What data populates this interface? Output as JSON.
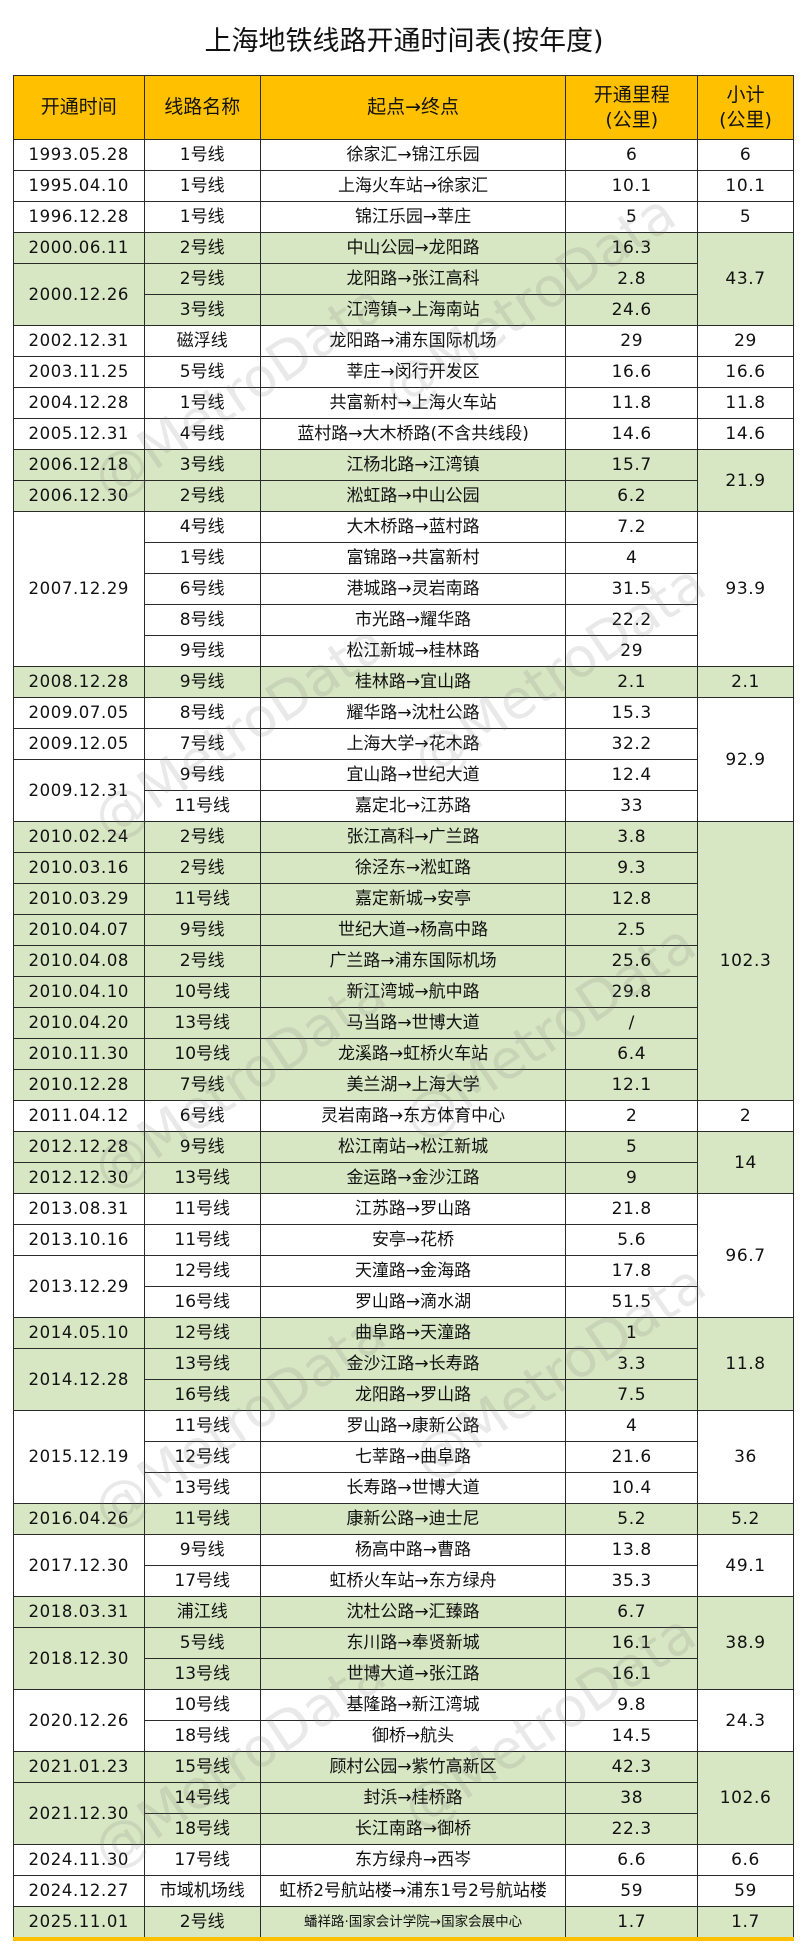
{
  "title": "上海地铁线路开通时间表(按年度)",
  "headers": {
    "date": "开通时间",
    "line": "线路名称",
    "route": "起点→终点",
    "mileage": "开通里程\n(公里)",
    "subtotal": "小计\n(公里)"
  },
  "watermark": "@MetroData",
  "colors": {
    "header": "#ffc000",
    "green_band": "#d7e6c3",
    "white_band": "#ffffff"
  },
  "rows": [
    {
      "date": "1993.05.28",
      "line": "1号线",
      "route": "徐家汇→锦江乐园",
      "km": "6",
      "sub": "6",
      "g": false
    },
    {
      "date": "1995.04.10",
      "line": "1号线",
      "route": "上海火车站→徐家汇",
      "km": "10.1",
      "sub": "10.1",
      "g": false
    },
    {
      "date": "1996.12.28",
      "line": "1号线",
      "route": "锦江乐园→莘庄",
      "km": "5",
      "sub": "5",
      "g": false
    },
    {
      "date": "2000.06.11",
      "line": "2号线",
      "route": "中山公园→龙阳路",
      "km": "16.3",
      "sub": "43.7",
      "subspan": 3,
      "g": true
    },
    {
      "date": "2000.12.26",
      "dspan": 2,
      "line": "2号线",
      "route": "龙阳路→张江高科",
      "km": "2.8",
      "g": true
    },
    {
      "line": "3号线",
      "route": "江湾镇→上海南站",
      "km": "24.6",
      "g": true
    },
    {
      "date": "2002.12.31",
      "line": "磁浮线",
      "route": "龙阳路→浦东国际机场",
      "km": "29",
      "sub": "29",
      "g": false
    },
    {
      "date": "2003.11.25",
      "line": "5号线",
      "route": "莘庄→闵行开发区",
      "km": "16.6",
      "sub": "16.6",
      "g": false
    },
    {
      "date": "2004.12.28",
      "line": "1号线",
      "route": "共富新村→上海火车站",
      "km": "11.8",
      "sub": "11.8",
      "g": false
    },
    {
      "date": "2005.12.31",
      "line": "4号线",
      "route": "蓝村路→大木桥路(不含共线段)",
      "km": "14.6",
      "sub": "14.6",
      "g": false
    },
    {
      "date": "2006.12.18",
      "line": "3号线",
      "route": "江杨北路→江湾镇",
      "km": "15.7",
      "sub": "21.9",
      "subspan": 2,
      "g": true
    },
    {
      "date": "2006.12.30",
      "line": "2号线",
      "route": "淞虹路→中山公园",
      "km": "6.2",
      "g": true
    },
    {
      "date": "2007.12.29",
      "dspan": 5,
      "line": "4号线",
      "route": "大木桥路→蓝村路",
      "km": "7.2",
      "sub": "93.9",
      "subspan": 5,
      "g": false
    },
    {
      "line": "1号线",
      "route": "富锦路→共富新村",
      "km": "4",
      "g": false
    },
    {
      "line": "6号线",
      "route": "港城路→灵岩南路",
      "km": "31.5",
      "g": false
    },
    {
      "line": "8号线",
      "route": "市光路→耀华路",
      "km": "22.2",
      "g": false
    },
    {
      "line": "9号线",
      "route": "松江新城→桂林路",
      "km": "29",
      "g": false
    },
    {
      "date": "2008.12.28",
      "line": "9号线",
      "route": "桂林路→宜山路",
      "km": "2.1",
      "sub": "2.1",
      "g": true
    },
    {
      "date": "2009.07.05",
      "line": "8号线",
      "route": "耀华路→沈杜公路",
      "km": "15.3",
      "sub": "92.9",
      "subspan": 4,
      "g": false
    },
    {
      "date": "2009.12.05",
      "line": "7号线",
      "route": "上海大学→花木路",
      "km": "32.2",
      "g": false
    },
    {
      "date": "2009.12.31",
      "dspan": 2,
      "line": "9号线",
      "route": "宜山路→世纪大道",
      "km": "12.4",
      "g": false
    },
    {
      "line": "11号线",
      "route": "嘉定北→江苏路",
      "km": "33",
      "g": false
    },
    {
      "date": "2010.02.24",
      "line": "2号线",
      "route": "张江高科→广兰路",
      "km": "3.8",
      "sub": "102.3",
      "subspan": 9,
      "g": true
    },
    {
      "date": "2010.03.16",
      "line": "2号线",
      "route": "徐泾东→淞虹路",
      "km": "9.3",
      "g": true
    },
    {
      "date": "2010.03.29",
      "line": "11号线",
      "route": "嘉定新城→安亭",
      "km": "12.8",
      "g": true
    },
    {
      "date": "2010.04.07",
      "line": "9号线",
      "route": "世纪大道→杨高中路",
      "km": "2.5",
      "g": true
    },
    {
      "date": "2010.04.08",
      "line": "2号线",
      "route": "广兰路→浦东国际机场",
      "km": "25.6",
      "g": true
    },
    {
      "date": "2010.04.10",
      "line": "10号线",
      "route": "新江湾城→航中路",
      "km": "29.8",
      "g": true
    },
    {
      "date": "2010.04.20",
      "line": "13号线",
      "route": "马当路→世博大道",
      "km": "/",
      "g": true
    },
    {
      "date": "2010.11.30",
      "line": "10号线",
      "route": "龙溪路→虹桥火车站",
      "km": "6.4",
      "g": true
    },
    {
      "date": "2010.12.28",
      "line": "7号线",
      "route": "美兰湖→上海大学",
      "km": "12.1",
      "g": true
    },
    {
      "date": "2011.04.12",
      "line": "6号线",
      "route": "灵岩南路→东方体育中心",
      "km": "2",
      "sub": "2",
      "g": false
    },
    {
      "date": "2012.12.28",
      "line": "9号线",
      "route": "松江南站→松江新城",
      "km": "5",
      "sub": "14",
      "subspan": 2,
      "g": true
    },
    {
      "date": "2012.12.30",
      "line": "13号线",
      "route": "金运路→金沙江路",
      "km": "9",
      "g": true
    },
    {
      "date": "2013.08.31",
      "line": "11号线",
      "route": "江苏路→罗山路",
      "km": "21.8",
      "sub": "96.7",
      "subspan": 4,
      "g": false
    },
    {
      "date": "2013.10.16",
      "line": "11号线",
      "route": "安亭→花桥",
      "km": "5.6",
      "g": false
    },
    {
      "date": "2013.12.29",
      "dspan": 2,
      "line": "12号线",
      "route": "天潼路→金海路",
      "km": "17.8",
      "g": false
    },
    {
      "line": "16号线",
      "route": "罗山路→滴水湖",
      "km": "51.5",
      "g": false
    },
    {
      "date": "2014.05.10",
      "line": "12号线",
      "route": "曲阜路→天潼路",
      "km": "1",
      "sub": "11.8",
      "subspan": 3,
      "g": true
    },
    {
      "date": "2014.12.28",
      "dspan": 2,
      "line": "13号线",
      "route": "金沙江路→长寿路",
      "km": "3.3",
      "g": true
    },
    {
      "line": "16号线",
      "route": "龙阳路→罗山路",
      "km": "7.5",
      "g": true
    },
    {
      "date": "2015.12.19",
      "dspan": 3,
      "line": "11号线",
      "route": "罗山路→康新公路",
      "km": "4",
      "sub": "36",
      "subspan": 3,
      "g": false
    },
    {
      "line": "12号线",
      "route": "七莘路→曲阜路",
      "km": "21.6",
      "g": false
    },
    {
      "line": "13号线",
      "route": "长寿路→世博大道",
      "km": "10.4",
      "g": false
    },
    {
      "date": "2016.04.26",
      "line": "11号线",
      "route": "康新公路→迪士尼",
      "km": "5.2",
      "sub": "5.2",
      "g": true
    },
    {
      "date": "2017.12.30",
      "dspan": 2,
      "line": "9号线",
      "route": "杨高中路→曹路",
      "km": "13.8",
      "sub": "49.1",
      "subspan": 2,
      "g": false
    },
    {
      "line": "17号线",
      "route": "虹桥火车站→东方绿舟",
      "km": "35.3",
      "g": false
    },
    {
      "date": "2018.03.31",
      "line": "浦江线",
      "route": "沈杜公路→汇臻路",
      "km": "6.7",
      "sub": "38.9",
      "subspan": 3,
      "g": true
    },
    {
      "date": "2018.12.30",
      "dspan": 2,
      "line": "5号线",
      "route": "东川路→奉贤新城",
      "km": "16.1",
      "g": true
    },
    {
      "line": "13号线",
      "route": "世博大道→张江路",
      "km": "16.1",
      "g": true
    },
    {
      "date": "2020.12.26",
      "dspan": 2,
      "line": "10号线",
      "route": "基隆路→新江湾城",
      "km": "9.8",
      "sub": "24.3",
      "subspan": 2,
      "g": false
    },
    {
      "line": "18号线",
      "route": "御桥→航头",
      "km": "14.5",
      "g": false
    },
    {
      "date": "2021.01.23",
      "line": "15号线",
      "route": "顾村公园→紫竹高新区",
      "km": "42.3",
      "sub": "102.6",
      "subspan": 3,
      "g": true
    },
    {
      "date": "2021.12.30",
      "dspan": 2,
      "line": "14号线",
      "route": "封浜→桂桥路",
      "km": "38",
      "g": true
    },
    {
      "line": "18号线",
      "route": "长江南路→御桥",
      "km": "22.3",
      "g": true
    },
    {
      "date": "2024.11.30",
      "line": "17号线",
      "route": "东方绿舟→西岑",
      "km": "6.6",
      "sub": "6.6",
      "g": false
    },
    {
      "date": "2024.12.27",
      "line": "市域机场线",
      "route": "虹桥2号航站楼→浦东1号2号航站楼",
      "km": "59",
      "sub": "59",
      "g": false
    },
    {
      "date": "2025.11.01",
      "line": "2号线",
      "route": "蟠祥路·国家会计学院→国家会展中心",
      "km": "1.7",
      "sub": "1.7",
      "g": true,
      "small": true
    }
  ]
}
